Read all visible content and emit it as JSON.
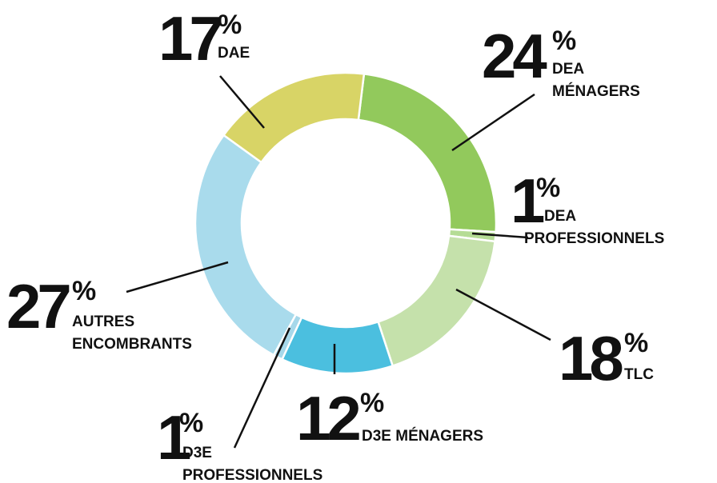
{
  "chart_data": {
    "type": "donut",
    "unit": "%",
    "categories": [
      [
        "DEA",
        "MÉNAGERS"
      ],
      [
        "DEA",
        "PROFESSIONNELS"
      ],
      [
        "TLC"
      ],
      [
        "D3E MÉNAGERS"
      ],
      [
        "D3E",
        "PROFESSIONNELS"
      ],
      [
        "AUTRES",
        "ENCOMBRANTS"
      ],
      [
        "DAE"
      ]
    ],
    "values": [
      24,
      1,
      18,
      12,
      1,
      27,
      17
    ],
    "colors": [
      "#92c95c",
      "#b5dc95",
      "#c5e1ab",
      "#4bbfdf",
      "#a6d8ea",
      "#a9dbec",
      "#d8d466"
    ]
  }
}
